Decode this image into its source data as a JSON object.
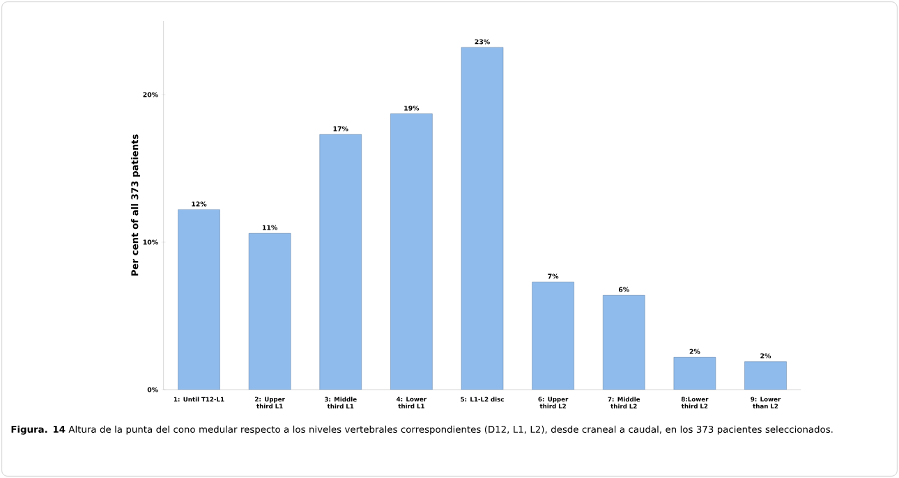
{
  "chart_data": {
    "type": "bar",
    "ylabel": "Per cent of all 373 patients",
    "categories": [
      "1: Until T12-L1",
      "2: Upper third L1",
      "3: Middle third L1",
      "4: Lower third L1",
      "5: L1-L2 disc",
      "6: Upper third L2",
      "7: Middle third L2",
      "8:Lower third L2",
      "9: Lower than L2"
    ],
    "values": [
      12.2,
      10.6,
      17.3,
      18.7,
      23.2,
      7.3,
      6.4,
      2.2,
      1.9
    ],
    "value_labels": [
      "12%",
      "11%",
      "17%",
      "19%",
      "23%",
      "7%",
      "6%",
      "2%",
      "2%"
    ],
    "color": "#8fbbec",
    "ylim": [
      0,
      25
    ],
    "yticks": [
      {
        "value": 0,
        "label": "0%"
      },
      {
        "value": 10,
        "label": "10%"
      },
      {
        "value": 20,
        "label": "20%"
      }
    ],
    "annotations": [
      "**Figura. 14** Altura de la punta del cono medular respecto a los niveles vertebrales correspondientes (D12, L1, L2), desde craneal a caudal, en los 373 pacientes seleccionados."
    ]
  }
}
